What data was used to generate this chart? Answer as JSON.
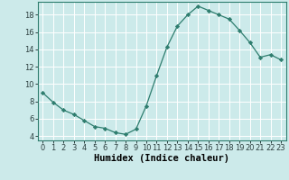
{
  "x": [
    0,
    1,
    2,
    3,
    4,
    5,
    6,
    7,
    8,
    9,
    10,
    11,
    12,
    13,
    14,
    15,
    16,
    17,
    18,
    19,
    20,
    21,
    22,
    23
  ],
  "y": [
    9.0,
    7.9,
    7.0,
    6.5,
    5.8,
    5.1,
    4.9,
    4.4,
    4.2,
    4.8,
    7.5,
    11.0,
    14.3,
    16.7,
    18.0,
    19.0,
    18.5,
    18.0,
    17.5,
    16.2,
    14.8,
    13.1,
    13.4,
    12.8
  ],
  "line_color": "#2e7d6e",
  "marker": "D",
  "marker_size": 2.2,
  "bg_color": "#cceaea",
  "grid_color": "#ffffff",
  "xlabel": "Humidex (Indice chaleur)",
  "xlim": [
    -0.5,
    23.5
  ],
  "ylim": [
    3.5,
    19.5
  ],
  "yticks": [
    4,
    6,
    8,
    10,
    12,
    14,
    16,
    18
  ],
  "xticks": [
    0,
    1,
    2,
    3,
    4,
    5,
    6,
    7,
    8,
    9,
    10,
    11,
    12,
    13,
    14,
    15,
    16,
    17,
    18,
    19,
    20,
    21,
    22,
    23
  ],
  "tick_labelsize": 6.0,
  "xlabel_fontsize": 7.5
}
